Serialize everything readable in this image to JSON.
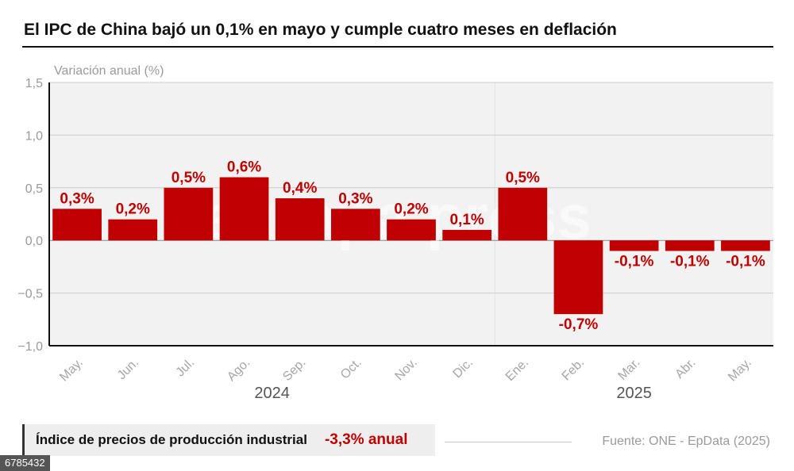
{
  "title": "El IPC de China bajó un 0,1% en mayo y cumple cuatro meses en deflación",
  "colors": {
    "bar": "#c00000",
    "plot_bg": "#f2f2f2",
    "grid": "#cccccc"
  },
  "watermark": "europa press",
  "chart_data": {
    "type": "bar",
    "ylabel": "Variación anual (%)",
    "ylim": [
      -1.0,
      1.5
    ],
    "yticks": [
      "1,5",
      "1,0",
      "0,5",
      "0,0",
      "−0,5",
      "−1,0"
    ],
    "ytick_values": [
      1.5,
      1.0,
      0.5,
      0.0,
      -0.5,
      -1.0
    ],
    "categories": [
      "May.",
      "Jun.",
      "Jul.",
      "Ago.",
      "Sep.",
      "Oct.",
      "Nov.",
      "Dic.",
      "Ene.",
      "Feb.",
      "Mar.",
      "Abr.",
      "May."
    ],
    "values": [
      0.3,
      0.2,
      0.5,
      0.6,
      0.4,
      0.3,
      0.2,
      0.1,
      0.5,
      -0.7,
      -0.1,
      -0.1,
      -0.1
    ],
    "labels": [
      "0,3%",
      "0,2%",
      "0,5%",
      "0,6%",
      "0,4%",
      "0,3%",
      "0,2%",
      "0,1%",
      "0,5%",
      "-0,7%",
      "-0,1%",
      "-0,1%",
      "-0,1%"
    ],
    "year_groups": [
      {
        "label": "2024",
        "count": 8
      },
      {
        "label": "2025",
        "count": 5
      }
    ]
  },
  "footer": {
    "label": "Índice de precios de producción industrial",
    "value": "-3,3% anual"
  },
  "source": "Fuente: ONE - EpData (2025)",
  "image_id": "6785432"
}
